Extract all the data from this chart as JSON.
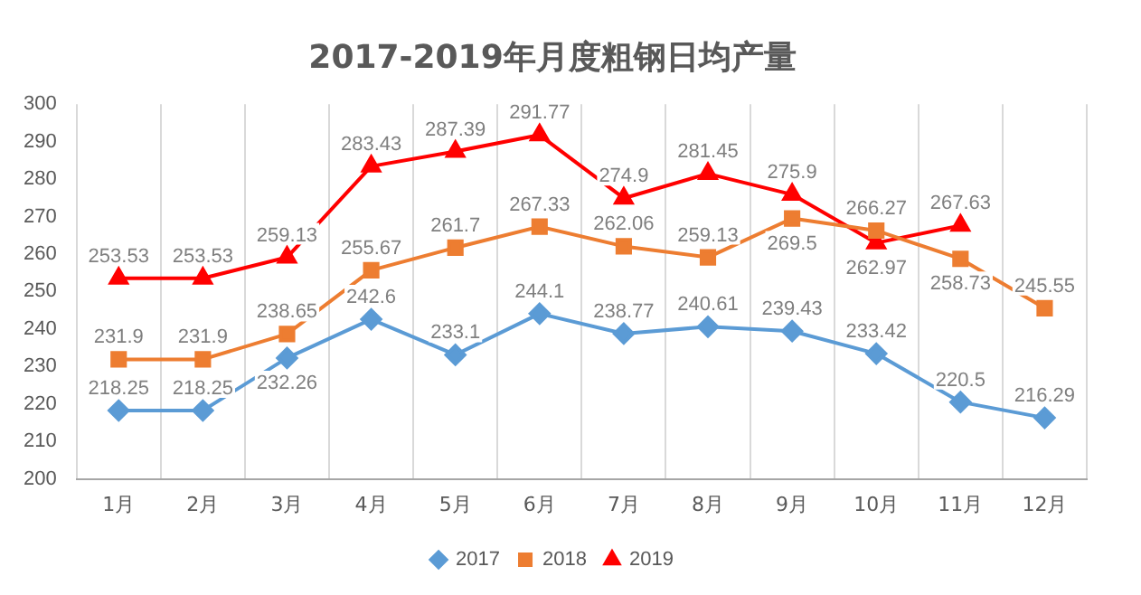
{
  "chart_data": {
    "type": "line",
    "title": "2017-2019年月度粗钢日均产量",
    "categories": [
      "1月",
      "2月",
      "3月",
      "4月",
      "5月",
      "6月",
      "7月",
      "8月",
      "9月",
      "10月",
      "11月",
      "12月"
    ],
    "series": [
      {
        "name": "2017",
        "color": "#5b9bd5",
        "marker": "diamond",
        "values": [
          218.25,
          218.25,
          232.26,
          242.6,
          233.1,
          244.1,
          238.77,
          240.61,
          239.43,
          233.42,
          220.5,
          216.29
        ]
      },
      {
        "name": "2018",
        "color": "#ed7d31",
        "marker": "square",
        "values": [
          231.9,
          231.9,
          238.65,
          255.67,
          261.7,
          267.33,
          262.06,
          259.13,
          269.5,
          266.27,
          258.73,
          245.55
        ]
      },
      {
        "name": "2019",
        "color": "#ff0000",
        "marker": "triangle",
        "values": [
          253.53,
          253.53,
          259.13,
          283.43,
          287.39,
          291.77,
          274.9,
          281.45,
          275.9,
          262.97,
          267.63,
          null
        ]
      }
    ],
    "ylim": [
      200,
      300
    ],
    "yticks": [
      200,
      210,
      220,
      230,
      240,
      250,
      260,
      270,
      280,
      290,
      300
    ],
    "grid": "x",
    "legend": "bottom",
    "data_labels": true,
    "line_style": "solid"
  }
}
